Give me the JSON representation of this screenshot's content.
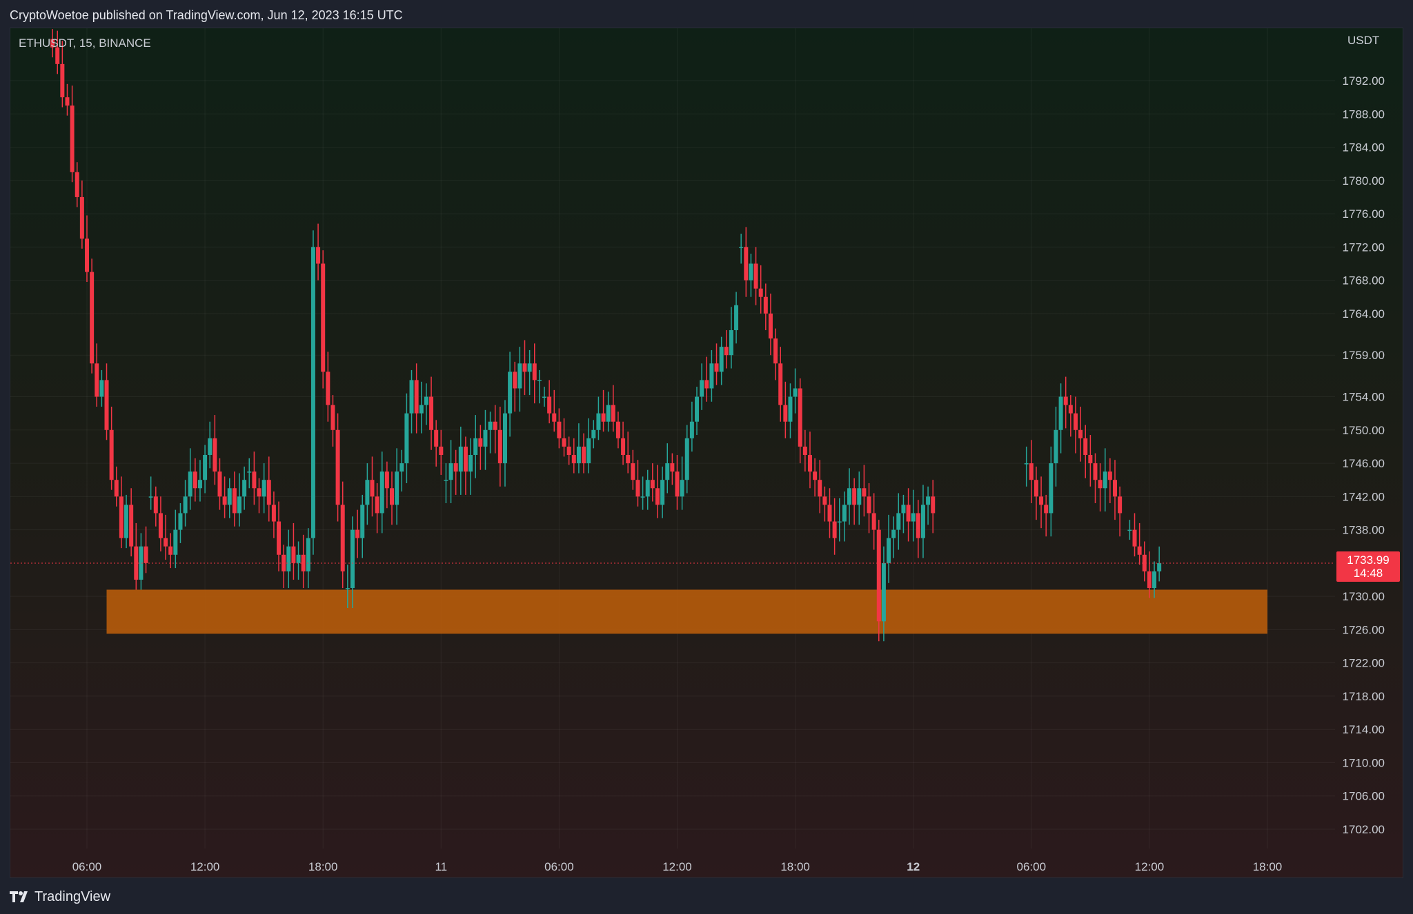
{
  "publisher_line": "CryptoWoetoe published on TradingView.com, Jun 12, 2023 16:15 UTC",
  "symbol": "ETHUSDT, 15, BINANCE",
  "currency": "USDT",
  "brand": "TradingView",
  "current_price": "1733.99",
  "countdown": "14:48",
  "colors": {
    "up": "#26a69a",
    "down": "#f23645",
    "zone": "#b45a0c",
    "price_line": "#f23645"
  },
  "chart_data": {
    "type": "candlestick",
    "interval_minutes": 15,
    "y_ticks": [
      "1792.00",
      "1788.00",
      "1784.00",
      "1780.00",
      "1776.00",
      "1772.00",
      "1768.00",
      "1764.00",
      "1759.00",
      "1754.00",
      "1750.00",
      "1746.00",
      "1742.00",
      "1738.00",
      "1730.00",
      "1726.00",
      "1722.00",
      "1718.00",
      "1714.00",
      "1710.00",
      "1706.00",
      "1702.00"
    ],
    "x_ticks": [
      {
        "label": "06:00",
        "t": "2023-06-10T06:00"
      },
      {
        "label": "12:00",
        "t": "2023-06-10T12:00"
      },
      {
        "label": "18:00",
        "t": "2023-06-10T18:00"
      },
      {
        "label": "11",
        "t": "2023-06-11T00:00"
      },
      {
        "label": "06:00",
        "t": "2023-06-11T06:00"
      },
      {
        "label": "12:00",
        "t": "2023-06-11T12:00"
      },
      {
        "label": "18:00",
        "t": "2023-06-11T18:00"
      },
      {
        "label": "12",
        "t": "2023-06-12T00:00",
        "bold": true
      },
      {
        "label": "06:00",
        "t": "2023-06-12T06:00"
      },
      {
        "label": "12:00",
        "t": "2023-06-12T12:00"
      },
      {
        "label": "18:00",
        "t": "2023-06-12T18:00"
      }
    ],
    "support_zone": {
      "low": 1725.5,
      "high": 1730.8,
      "from": "2023-06-10T07:00",
      "to": "2023-06-12T18:00"
    },
    "last_price": 1733.99,
    "ohlc_series": [
      {
        "t": "2023-06-10T04:15",
        "closes": [
          1796,
          1794,
          1790,
          1789,
          1781,
          1778,
          1773,
          1769,
          1758,
          1754,
          1756,
          1750,
          1744,
          1742,
          1737,
          1741,
          1736,
          1732,
          1736,
          1734
        ]
      },
      {
        "t": "2023-06-10T09:15",
        "closes": [
          1742,
          1740,
          1737,
          1736,
          1735,
          1738,
          1740,
          1742,
          1745,
          1743,
          1744,
          1747,
          1749,
          1745,
          1742,
          1741,
          1743,
          1740,
          1742,
          1744
        ]
      },
      {
        "t": "2023-06-10T14:15",
        "closes": [
          1745,
          1743,
          1742,
          1744,
          1741,
          1739,
          1735,
          1733,
          1736,
          1734,
          1735,
          1733,
          1737,
          1772,
          1770,
          1757,
          1753,
          1750,
          1741,
          1733
        ]
      },
      {
        "t": "2023-06-10T19:15",
        "closes": [
          1731,
          1738,
          1737,
          1741,
          1744,
          1742,
          1740,
          1745,
          1743,
          1741,
          1745,
          1746,
          1752,
          1756,
          1752,
          1753,
          1754,
          1750,
          1748,
          1747
        ]
      },
      {
        "t": "2023-06-11T00:15",
        "closes": [
          1744,
          1746,
          1745,
          1748,
          1745,
          1747,
          1749,
          1748,
          1750,
          1751,
          1750,
          1746,
          1752,
          1757,
          1755,
          1758,
          1757,
          1758,
          1756,
          1756
        ]
      },
      {
        "t": "2023-06-11T05:15",
        "closes": [
          1754,
          1752,
          1751,
          1749,
          1748,
          1747,
          1746,
          1748,
          1746,
          1749,
          1750,
          1752,
          1751,
          1753,
          1751,
          1749,
          1747,
          1746,
          1744,
          1742
        ]
      },
      {
        "t": "2023-06-11T10:15",
        "closes": [
          1742,
          1744,
          1743,
          1741,
          1744,
          1746,
          1745,
          1742,
          1744,
          1749,
          1751,
          1754,
          1756,
          1755,
          1758,
          1757,
          1760,
          1759,
          1762,
          1765
        ]
      },
      {
        "t": "2023-06-11T15:15",
        "closes": [
          1772,
          1768,
          1770,
          1767,
          1766,
          1764,
          1761,
          1758,
          1753,
          1751,
          1754,
          1755,
          1748,
          1747,
          1745,
          1744,
          1742,
          1741,
          1739,
          1737
        ]
      },
      {
        "t": "2023-06-11T20:15",
        "closes": [
          1739,
          1741,
          1743,
          1741,
          1743,
          1742,
          1740,
          1738,
          1727,
          1734,
          1737,
          1738,
          1740,
          1741,
          1739,
          1740,
          1737,
          1741,
          1742,
          1740
        ]
      },
      {
        "t": "2023-06-12T05:45",
        "closes": [
          1746,
          1744,
          1742,
          1741,
          1740,
          1746,
          1750,
          1754,
          1753,
          1752,
          1750,
          1749,
          1747,
          1746,
          1744,
          1743,
          1745,
          1744,
          1742,
          1740
        ]
      },
      {
        "t": "2023-06-12T11:00",
        "closes": [
          1738,
          1736,
          1735,
          1733,
          1731,
          1733,
          1733.99
        ]
      }
    ]
  }
}
